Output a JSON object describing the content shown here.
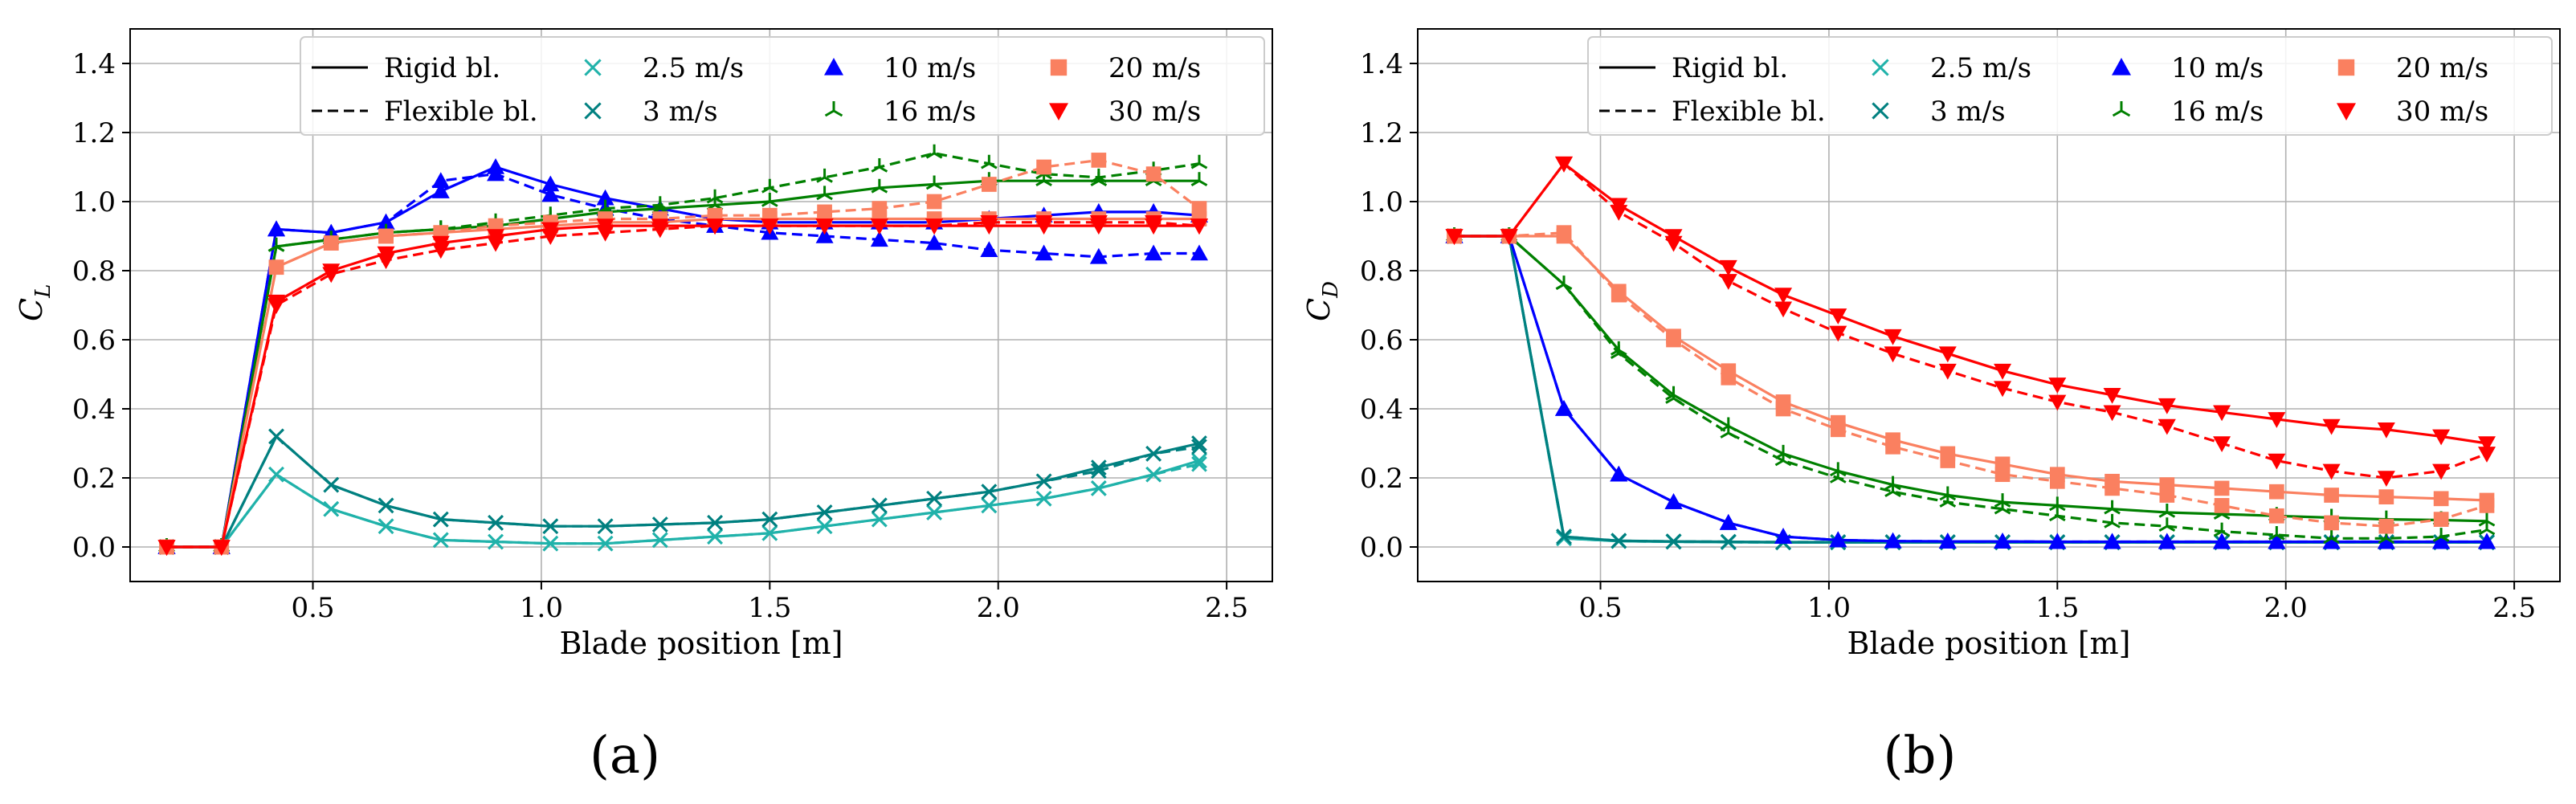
{
  "chart_data": [
    {
      "type": "line",
      "panel_label": "(a)",
      "xlabel": "Blade position [m]",
      "ylabel": "C_L",
      "ylabel_main": "C",
      "ylabel_sub": "L",
      "xlim": [
        0.1,
        2.6
      ],
      "ylim": [
        -0.1,
        1.5
      ],
      "xticks": [
        0.5,
        1.0,
        1.5,
        2.0,
        2.5
      ],
      "xtick_labels": [
        "0.5",
        "1.0",
        "1.5",
        "2.0",
        "2.5"
      ],
      "yticks": [
        0.0,
        0.2,
        0.4,
        0.6,
        0.8,
        1.0,
        1.2,
        1.4
      ],
      "ytick_labels": [
        "0.0",
        "0.2",
        "0.4",
        "0.6",
        "0.8",
        "1.0",
        "1.2",
        "1.4"
      ],
      "grid": true,
      "legend_position": "top-right",
      "x": [
        0.18,
        0.3,
        0.42,
        0.54,
        0.66,
        0.78,
        0.9,
        1.02,
        1.14,
        1.26,
        1.38,
        1.5,
        1.62,
        1.74,
        1.86,
        1.98,
        2.1,
        2.22,
        2.34,
        2.44
      ],
      "series": [
        {
          "name": "2.5 m/s",
          "blade": "rigid",
          "color": "#20b2aa",
          "marker": "x",
          "values": [
            0.0,
            0.0,
            0.21,
            0.11,
            0.06,
            0.02,
            0.015,
            0.01,
            0.01,
            0.02,
            0.03,
            0.04,
            0.06,
            0.08,
            0.1,
            0.12,
            0.14,
            0.17,
            0.21,
            0.25
          ]
        },
        {
          "name": "2.5 m/s",
          "blade": "flexible",
          "color": "#20b2aa",
          "marker": "x",
          "values": [
            0.0,
            0.0,
            0.21,
            0.11,
            0.06,
            0.02,
            0.015,
            0.01,
            0.01,
            0.02,
            0.03,
            0.04,
            0.06,
            0.08,
            0.1,
            0.12,
            0.14,
            0.17,
            0.21,
            0.24
          ]
        },
        {
          "name": "3 m/s",
          "blade": "rigid",
          "color": "#008080",
          "marker": "x",
          "values": [
            0.0,
            0.0,
            0.32,
            0.18,
            0.12,
            0.08,
            0.07,
            0.06,
            0.06,
            0.065,
            0.07,
            0.08,
            0.1,
            0.12,
            0.14,
            0.16,
            0.19,
            0.23,
            0.27,
            0.3
          ]
        },
        {
          "name": "3 m/s",
          "blade": "flexible",
          "color": "#008080",
          "marker": "x",
          "values": [
            0.0,
            0.0,
            0.32,
            0.18,
            0.12,
            0.08,
            0.07,
            0.06,
            0.06,
            0.065,
            0.07,
            0.08,
            0.1,
            0.12,
            0.14,
            0.16,
            0.19,
            0.22,
            0.27,
            0.29
          ]
        },
        {
          "name": "10 m/s",
          "blade": "rigid",
          "color": "#0000ff",
          "marker": "^",
          "values": [
            0.0,
            0.0,
            0.92,
            0.91,
            0.94,
            1.03,
            1.1,
            1.05,
            1.01,
            0.98,
            0.95,
            0.94,
            0.94,
            0.94,
            0.94,
            0.95,
            0.96,
            0.97,
            0.97,
            0.96
          ]
        },
        {
          "name": "10 m/s",
          "blade": "flexible",
          "color": "#0000ff",
          "marker": "^",
          "values": [
            0.0,
            0.0,
            0.92,
            0.91,
            0.94,
            1.06,
            1.08,
            1.02,
            0.98,
            0.95,
            0.93,
            0.91,
            0.9,
            0.89,
            0.88,
            0.86,
            0.85,
            0.84,
            0.85,
            0.85
          ]
        },
        {
          "name": "16 m/s",
          "blade": "rigid",
          "color": "#008000",
          "marker": "tri",
          "values": [
            0.0,
            0.0,
            0.87,
            0.89,
            0.91,
            0.92,
            0.93,
            0.95,
            0.97,
            0.98,
            0.99,
            1.0,
            1.02,
            1.04,
            1.05,
            1.06,
            1.06,
            1.06,
            1.06,
            1.06
          ]
        },
        {
          "name": "16 m/s",
          "blade": "flexible",
          "color": "#008000",
          "marker": "tri",
          "values": [
            0.0,
            0.0,
            0.87,
            0.89,
            0.91,
            0.92,
            0.94,
            0.96,
            0.98,
            0.99,
            1.01,
            1.04,
            1.07,
            1.1,
            1.14,
            1.11,
            1.08,
            1.07,
            1.09,
            1.11
          ]
        },
        {
          "name": "20 m/s",
          "blade": "rigid",
          "color": "#fa8060",
          "marker": "s",
          "values": [
            0.0,
            0.0,
            0.81,
            0.88,
            0.9,
            0.91,
            0.92,
            0.93,
            0.94,
            0.94,
            0.95,
            0.95,
            0.95,
            0.95,
            0.95,
            0.95,
            0.95,
            0.95,
            0.95,
            0.95
          ]
        },
        {
          "name": "20 m/s",
          "blade": "flexible",
          "color": "#fa8060",
          "marker": "s",
          "values": [
            0.0,
            0.0,
            0.81,
            0.88,
            0.9,
            0.91,
            0.93,
            0.94,
            0.95,
            0.95,
            0.96,
            0.96,
            0.97,
            0.98,
            1.0,
            1.05,
            1.1,
            1.12,
            1.08,
            0.98
          ]
        },
        {
          "name": "30 m/s",
          "blade": "rigid",
          "color": "#ff0000",
          "marker": "v",
          "values": [
            0.0,
            0.0,
            0.71,
            0.8,
            0.85,
            0.88,
            0.9,
            0.92,
            0.93,
            0.93,
            0.93,
            0.93,
            0.93,
            0.93,
            0.93,
            0.93,
            0.93,
            0.93,
            0.93,
            0.93
          ]
        },
        {
          "name": "30 m/s",
          "blade": "flexible",
          "color": "#ff0000",
          "marker": "v",
          "values": [
            0.0,
            0.0,
            0.7,
            0.79,
            0.83,
            0.86,
            0.88,
            0.9,
            0.91,
            0.92,
            0.93,
            0.93,
            0.93,
            0.93,
            0.93,
            0.94,
            0.94,
            0.94,
            0.94,
            0.93
          ]
        }
      ]
    },
    {
      "type": "line",
      "panel_label": "(b)",
      "xlabel": "Blade position [m]",
      "ylabel": "C_D",
      "ylabel_main": "C",
      "ylabel_sub": "D",
      "xlim": [
        0.1,
        2.6
      ],
      "ylim": [
        -0.1,
        1.5
      ],
      "xticks": [
        0.5,
        1.0,
        1.5,
        2.0,
        2.5
      ],
      "xtick_labels": [
        "0.5",
        "1.0",
        "1.5",
        "2.0",
        "2.5"
      ],
      "yticks": [
        0.0,
        0.2,
        0.4,
        0.6,
        0.8,
        1.0,
        1.2,
        1.4
      ],
      "ytick_labels": [
        "0.0",
        "0.2",
        "0.4",
        "0.6",
        "0.8",
        "1.0",
        "1.2",
        "1.4"
      ],
      "grid": true,
      "legend_position": "top-right",
      "x": [
        0.18,
        0.3,
        0.42,
        0.54,
        0.66,
        0.78,
        0.9,
        1.02,
        1.14,
        1.26,
        1.38,
        1.5,
        1.62,
        1.74,
        1.86,
        1.98,
        2.1,
        2.22,
        2.34,
        2.44
      ],
      "series": [
        {
          "name": "2.5 m/s",
          "blade": "rigid",
          "color": "#20b2aa",
          "marker": "x",
          "values": [
            0.9,
            0.9,
            0.025,
            0.017,
            0.015,
            0.014,
            0.013,
            0.013,
            0.013,
            0.013,
            0.013,
            0.013,
            0.013,
            0.013,
            0.013,
            0.013,
            0.013,
            0.013,
            0.013,
            0.013
          ]
        },
        {
          "name": "2.5 m/s",
          "blade": "flexible",
          "color": "#20b2aa",
          "marker": "x",
          "values": [
            0.9,
            0.9,
            0.025,
            0.017,
            0.015,
            0.014,
            0.013,
            0.013,
            0.013,
            0.013,
            0.013,
            0.013,
            0.013,
            0.013,
            0.013,
            0.013,
            0.013,
            0.013,
            0.013,
            0.013
          ]
        },
        {
          "name": "3 m/s",
          "blade": "rigid",
          "color": "#008080",
          "marker": "x",
          "values": [
            0.9,
            0.9,
            0.03,
            0.018,
            0.016,
            0.015,
            0.014,
            0.014,
            0.014,
            0.014,
            0.014,
            0.014,
            0.014,
            0.014,
            0.014,
            0.014,
            0.014,
            0.014,
            0.014,
            0.014
          ]
        },
        {
          "name": "3 m/s",
          "blade": "flexible",
          "color": "#008080",
          "marker": "x",
          "values": [
            0.9,
            0.9,
            0.03,
            0.018,
            0.016,
            0.015,
            0.014,
            0.014,
            0.014,
            0.014,
            0.014,
            0.014,
            0.014,
            0.014,
            0.014,
            0.014,
            0.014,
            0.014,
            0.014,
            0.014
          ]
        },
        {
          "name": "10 m/s",
          "blade": "rigid",
          "color": "#0000ff",
          "marker": "^",
          "values": [
            0.9,
            0.9,
            0.4,
            0.21,
            0.13,
            0.07,
            0.03,
            0.02,
            0.017,
            0.016,
            0.016,
            0.015,
            0.015,
            0.015,
            0.015,
            0.015,
            0.015,
            0.015,
            0.015,
            0.015
          ]
        },
        {
          "name": "10 m/s",
          "blade": "flexible",
          "color": "#0000ff",
          "marker": "^",
          "values": [
            0.9,
            0.9,
            0.4,
            0.21,
            0.13,
            0.07,
            0.03,
            0.02,
            0.017,
            0.016,
            0.016,
            0.015,
            0.015,
            0.015,
            0.015,
            0.015,
            0.015,
            0.015,
            0.015,
            0.015
          ]
        },
        {
          "name": "16 m/s",
          "blade": "rigid",
          "color": "#008000",
          "marker": "tri",
          "values": [
            0.9,
            0.9,
            0.76,
            0.57,
            0.44,
            0.35,
            0.27,
            0.22,
            0.18,
            0.15,
            0.13,
            0.12,
            0.11,
            0.1,
            0.095,
            0.09,
            0.085,
            0.08,
            0.078,
            0.075
          ]
        },
        {
          "name": "16 m/s",
          "blade": "flexible",
          "color": "#008000",
          "marker": "tri",
          "values": [
            0.9,
            0.9,
            0.76,
            0.56,
            0.43,
            0.33,
            0.25,
            0.2,
            0.16,
            0.13,
            0.11,
            0.09,
            0.07,
            0.06,
            0.045,
            0.035,
            0.025,
            0.025,
            0.03,
            0.05
          ]
        },
        {
          "name": "20 m/s",
          "blade": "rigid",
          "color": "#fa8060",
          "marker": "s",
          "values": [
            0.9,
            0.9,
            0.9,
            0.74,
            0.61,
            0.51,
            0.42,
            0.36,
            0.31,
            0.27,
            0.24,
            0.21,
            0.19,
            0.18,
            0.17,
            0.16,
            0.15,
            0.145,
            0.14,
            0.135
          ]
        },
        {
          "name": "20 m/s",
          "blade": "flexible",
          "color": "#fa8060",
          "marker": "s",
          "values": [
            0.9,
            0.9,
            0.91,
            0.73,
            0.6,
            0.49,
            0.4,
            0.34,
            0.29,
            0.25,
            0.21,
            0.19,
            0.17,
            0.15,
            0.12,
            0.09,
            0.07,
            0.06,
            0.08,
            0.12
          ]
        },
        {
          "name": "30 m/s",
          "blade": "rigid",
          "color": "#ff0000",
          "marker": "v",
          "values": [
            0.9,
            0.9,
            1.11,
            0.99,
            0.9,
            0.81,
            0.73,
            0.67,
            0.61,
            0.56,
            0.51,
            0.47,
            0.44,
            0.41,
            0.39,
            0.37,
            0.35,
            0.34,
            0.32,
            0.3
          ]
        },
        {
          "name": "30 m/s",
          "blade": "flexible",
          "color": "#ff0000",
          "marker": "v",
          "values": [
            0.9,
            0.9,
            1.11,
            0.97,
            0.88,
            0.77,
            0.69,
            0.62,
            0.56,
            0.51,
            0.46,
            0.42,
            0.39,
            0.35,
            0.3,
            0.25,
            0.22,
            0.2,
            0.22,
            0.27
          ]
        }
      ]
    }
  ],
  "legend": {
    "line_styles": [
      {
        "label": "Rigid bl.",
        "style": "solid"
      },
      {
        "label": "Flexible bl.",
        "style": "dashed"
      }
    ],
    "markers": [
      {
        "label": "2.5 m/s",
        "color": "#20b2aa",
        "marker": "x"
      },
      {
        "label": "3 m/s",
        "color": "#008080",
        "marker": "x"
      },
      {
        "label": "10 m/s",
        "color": "#0000ff",
        "marker": "^"
      },
      {
        "label": "16 m/s",
        "color": "#008000",
        "marker": "tri"
      },
      {
        "label": "20 m/s",
        "color": "#fa8060",
        "marker": "s"
      },
      {
        "label": "30 m/s",
        "color": "#ff0000",
        "marker": "v"
      }
    ]
  }
}
